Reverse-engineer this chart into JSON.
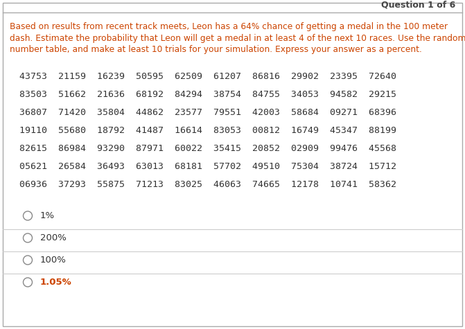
{
  "title": "Question 1 of 6",
  "question_lines": [
    "Based on results from recent track meets, Leon has a 64% chance of getting a medal in the 100 meter",
    "dash. Estimate the probability that Leon will get a medal in at least 4 of the next 10 races. Use the random",
    "number table, and make at least 10 trials for your simulation. Express your answer as a percent."
  ],
  "number_table": [
    "43753  21159  16239  50595  62509  61207  86816  29902  23395  72640",
    "83503  51662  21636  68192  84294  38754  84755  34053  94582  29215",
    "36807  71420  35804  44862  23577  79551  42003  58684  09271  68396",
    "19110  55680  18792  41487  16614  83053  00812  16749  45347  88199",
    "82615  86984  93290  87971  60022  35415  20852  02909  99476  45568",
    "05621  26584  36493  63013  68181  57702  49510  75304  38724  15712",
    "06936  37293  55875  71213  83025  46063  74665  12178  10741  58362"
  ],
  "choices": [
    "1%",
    "200%",
    "100%",
    "1.05%"
  ],
  "choice_bold": [
    false,
    false,
    false,
    true
  ],
  "choice_colors": [
    "#333333",
    "#333333",
    "#333333",
    "#cc4400"
  ],
  "bg_color": "#ffffff",
  "outer_border_color": "#aaaaaa",
  "title_color": "#444444",
  "text_color": "#cc4400",
  "table_color": "#333333",
  "divider_color": "#cccccc",
  "radio_color": "#888888",
  "title_line_color": "#aaaaaa"
}
